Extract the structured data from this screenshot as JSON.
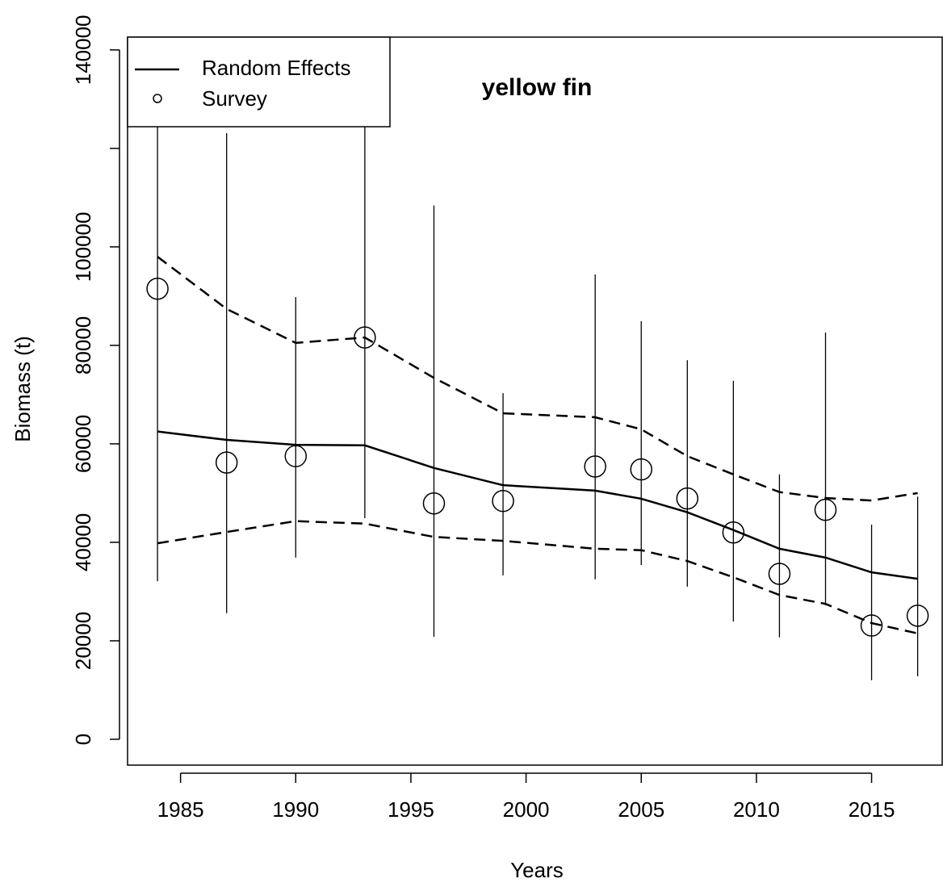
{
  "chart_data": {
    "type": "line",
    "title": "yellow fin",
    "x_label": "Years",
    "y_label": "Biomass (t)",
    "x": [
      1984,
      1987,
      1990,
      1993,
      1996,
      1999,
      2003,
      2005,
      2007,
      2009,
      2011,
      2013,
      2015,
      2017
    ],
    "xlim": [
      1982.7,
      2018.1
    ],
    "xticks": [
      1985,
      1990,
      1995,
      2000,
      2005,
      2010,
      2015
    ],
    "ylim": [
      -5250,
      142600
    ],
    "yticks": [
      0,
      20000,
      40000,
      60000,
      80000,
      100000,
      140000
    ],
    "yticks_unlabeled": [
      120000
    ],
    "legend": "top-left",
    "series": [
      {
        "name": "Random Effects",
        "color": "#000000",
        "style": "solid",
        "values": [
          62500,
          60800,
          59800,
          59700,
          55100,
          51600,
          50500,
          48850,
          46100,
          42500,
          38700,
          36900,
          33900,
          32600
        ]
      },
      {
        "color": "#000000",
        "style": "dashed",
        "values": [
          98000,
          87400,
          80500,
          81600,
          73400,
          66200,
          65400,
          62950,
          57500,
          53800,
          50200,
          49000,
          48500,
          50000
        ]
      },
      {
        "color": "#000000",
        "style": "dashed",
        "values": [
          39800,
          42100,
          44300,
          43800,
          41100,
          40300,
          38700,
          38400,
          36200,
          32900,
          29300,
          27500,
          23600,
          21500
        ]
      },
      {
        "name": "Survey",
        "color": "#000000",
        "style": "points",
        "values": [
          91500,
          56200,
          57500,
          81600,
          47900,
          48400,
          55400,
          54800,
          48900,
          42000,
          33600,
          46600,
          23100,
          25100
        ],
        "lower": [
          32100,
          25600,
          36900,
          44900,
          20800,
          33300,
          32500,
          35400,
          31000,
          23900,
          20700,
          27200,
          12000,
          12800
        ],
        "upper": [
          150000,
          123100,
          89800,
          150000,
          108400,
          70300,
          94400,
          84900,
          77000,
          72800,
          53800,
          82600,
          43600,
          49300
        ]
      }
    ]
  }
}
